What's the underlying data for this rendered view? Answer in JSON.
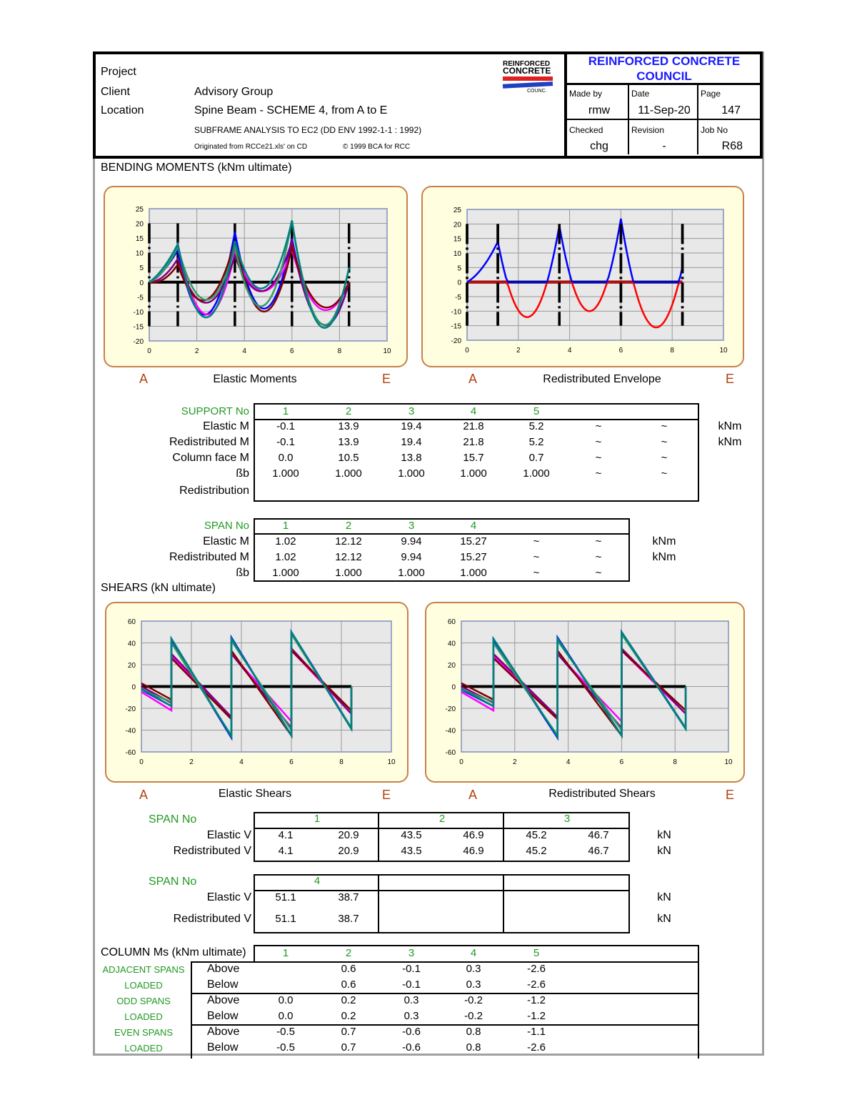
{
  "header": {
    "project_label": "Project",
    "client_label": "Client",
    "client": "Advisory Group",
    "location_label": "Location",
    "location": "Spine Beam - SCHEME 4, from A to E",
    "analysis": "SUBFRAME ANALYSIS TO EC2 (DD ENV 1992-1-1 : 1992)",
    "originated": "Originated from RCCe21.xls' on CD",
    "copyright": "© 1999 BCA for RCC",
    "logo_text": "REINFORCED CONCRETE COUNCIL",
    "council_line1": "REINFORCED CONCRETE",
    "council_line2": "COUNCIL",
    "made_by_label": "Made by",
    "made_by": "rmw",
    "date_label": "Date",
    "date": "11-Sep-20",
    "page_label": "Page",
    "page": "147",
    "checked_label": "Checked",
    "checked": "chg",
    "revision_label": "Revision",
    "revision": "-",
    "job_label": "Job No",
    "job": "R68"
  },
  "bending": {
    "title": "BENDING MOMENTS (kNm ultimate)",
    "left_caption": "Elastic Moments",
    "right_caption": "Redistributed Envelope",
    "a": "A",
    "e": "E"
  },
  "supports": {
    "header": "SUPPORT No",
    "cols": [
      "1",
      "2",
      "3",
      "4",
      "5"
    ],
    "rows": [
      {
        "label": "Elastic M",
        "values": [
          "-0.1",
          "13.9",
          "19.4",
          "21.8",
          "5.2",
          "~",
          "~"
        ],
        "unit": "kNm"
      },
      {
        "label": "Redistributed M",
        "values": [
          "-0.1",
          "13.9",
          "19.4",
          "21.8",
          "5.2",
          "~",
          "~"
        ],
        "unit": "kNm"
      },
      {
        "label": "Column face M",
        "values": [
          "0.0",
          "10.5",
          "13.8",
          "15.7",
          "0.7",
          "~",
          "~"
        ],
        "unit": ""
      },
      {
        "label": "ßb",
        "values": [
          "1.000",
          "1.000",
          "1.000",
          "1.000",
          "1.000",
          "~",
          "~"
        ],
        "unit": ""
      },
      {
        "label": "Redistribution",
        "values": [],
        "unit": ""
      }
    ]
  },
  "spans": {
    "header": "SPAN No",
    "cols": [
      "1",
      "2",
      "3",
      "4"
    ],
    "rows": [
      {
        "label": "Elastic M",
        "values": [
          "1.02",
          "12.12",
          "9.94",
          "15.27",
          "~",
          "~"
        ],
        "unit": "kNm"
      },
      {
        "label": "Redistributed M",
        "values": [
          "1.02",
          "12.12",
          "9.94",
          "15.27",
          "~",
          "~"
        ],
        "unit": "kNm"
      },
      {
        "label": "ßb",
        "values": [
          "1.000",
          "1.000",
          "1.000",
          "1.000",
          "~",
          "~"
        ],
        "unit": ""
      }
    ]
  },
  "shears": {
    "title": "SHEARS (kN ultimate)",
    "left_caption": "Elastic Shears",
    "right_caption": "Redistributed Shears",
    "a": "A",
    "e": "E",
    "table1": {
      "header": "SPAN No",
      "cols": [
        "1",
        "2",
        "3"
      ],
      "rows": [
        {
          "label": "Elastic V",
          "values": [
            "4.1",
            "20.9",
            "43.5",
            "46.9",
            "45.2",
            "46.7"
          ],
          "unit": "kN"
        },
        {
          "label": "Redistributed V",
          "values": [
            "4.1",
            "20.9",
            "43.5",
            "46.9",
            "45.2",
            "46.7"
          ],
          "unit": "kN"
        }
      ]
    },
    "table2": {
      "header": "SPAN No",
      "cols": [
        "4"
      ],
      "rows": [
        {
          "label": "Elastic V",
          "values": [
            "51.1",
            "38.7"
          ],
          "unit": "kN"
        },
        {
          "label": "Redistributed V",
          "values": [
            "51.1",
            "38.7"
          ],
          "unit": "kN"
        }
      ]
    }
  },
  "columns": {
    "title": "COLUMN Ms (kNm ultimate)",
    "cols": [
      "1",
      "2",
      "3",
      "4",
      "5"
    ],
    "groups": [
      {
        "label1": "ADJACENT SPANS",
        "label2": "LOADED",
        "rows": [
          {
            "pos": "Above",
            "values": [
              "",
              "0.6",
              "-0.1",
              "0.3",
              "-2.6"
            ]
          },
          {
            "pos": "Below",
            "values": [
              "",
              "0.6",
              "-0.1",
              "0.3",
              "-2.6"
            ]
          }
        ]
      },
      {
        "label1": "ODD SPANS",
        "label2": "LOADED",
        "rows": [
          {
            "pos": "Above",
            "values": [
              "0.0",
              "0.2",
              "0.3",
              "-0.2",
              "-1.2"
            ]
          },
          {
            "pos": "Below",
            "values": [
              "0.0",
              "0.2",
              "0.3",
              "-0.2",
              "-1.2"
            ]
          }
        ]
      },
      {
        "label1": "EVEN SPANS",
        "label2": "LOADED",
        "rows": [
          {
            "pos": "Above",
            "values": [
              "-0.5",
              "0.7",
              "-0.6",
              "0.8",
              "-1.1"
            ]
          },
          {
            "pos": "Below",
            "values": [
              "-0.5",
              "0.7",
              "-0.6",
              "0.8",
              "-2.6"
            ]
          }
        ]
      }
    ]
  },
  "chart_data": [
    {
      "type": "line",
      "xlim": [
        0,
        10
      ],
      "ylim": [
        -20,
        25
      ],
      "xticks": [
        0,
        2,
        4,
        6,
        8,
        10
      ],
      "yticks": [
        -20,
        -15,
        -10,
        -5,
        0,
        5,
        10,
        15,
        20,
        25
      ],
      "grid": true,
      "supports_x": [
        0,
        1.2,
        3.6,
        6,
        8.4
      ],
      "series": [
        {
          "color": "#0000ff",
          "support_values": [
            0,
            11,
            17,
            15,
            0
          ],
          "midspan_values": [
            4,
            -11,
            -9,
            -14
          ]
        },
        {
          "color": "#ff00ff",
          "support_values": [
            0,
            13,
            10,
            11,
            0
          ],
          "midspan_values": [
            4,
            -11,
            -3,
            -9
          ]
        },
        {
          "color": "#800080",
          "support_values": [
            0,
            8,
            9,
            14,
            0
          ],
          "midspan_values": [
            2,
            -7,
            -3,
            -14
          ]
        },
        {
          "color": "#800000",
          "support_values": [
            0,
            6,
            14,
            12,
            0
          ],
          "midspan_values": [
            1,
            -6,
            -10,
            -8
          ]
        },
        {
          "color": "#339966",
          "support_values": [
            0,
            12,
            12,
            21,
            5
          ],
          "midspan_values": [
            4,
            -6,
            -8,
            -14
          ]
        },
        {
          "color": "#008080",
          "support_values": [
            0,
            13,
            14,
            21,
            5
          ],
          "midspan_values": [
            5,
            -12,
            -2,
            -15
          ]
        }
      ]
    },
    {
      "type": "line",
      "xlim": [
        0,
        10
      ],
      "ylim": [
        -20,
        25
      ],
      "xticks": [
        0,
        2,
        4,
        6,
        8,
        10
      ],
      "yticks": [
        -20,
        -15,
        -10,
        -5,
        0,
        5,
        10,
        15,
        20,
        25
      ],
      "grid": true,
      "supports_x": [
        0,
        1.2,
        3.6,
        6,
        8.4
      ],
      "envelope": true,
      "series": [
        {
          "color": "#0000ff",
          "negative_color": "#ff0000",
          "support_values": [
            0,
            13.9,
            19.4,
            21.8,
            5.2
          ],
          "midspan_values": [
            5,
            -12,
            -10,
            -15
          ]
        }
      ]
    },
    {
      "type": "line",
      "xlim": [
        0,
        10
      ],
      "ylim": [
        -60,
        60
      ],
      "xticks": [
        0,
        2,
        4,
        6,
        8,
        10
      ],
      "yticks": [
        -60,
        -40,
        -20,
        0,
        20,
        40,
        60
      ],
      "grid": true,
      "supports_x": [
        0,
        1.2,
        3.6,
        6,
        8.4
      ],
      "series": [
        {
          "color": "#0000ff",
          "span_end_values": [
            [
              -3,
              -18
            ],
            [
              43,
              -47
            ],
            [
              45,
              -45
            ],
            [
              50,
              -38
            ]
          ]
        },
        {
          "color": "#ff00ff",
          "span_end_values": [
            [
              -5,
              -22
            ],
            [
              28,
              -28
            ],
            [
              30,
              -32
            ],
            [
              33,
              -25
            ]
          ]
        },
        {
          "color": "#800080",
          "span_end_values": [
            [
              0,
              -15
            ],
            [
              30,
              -28
            ],
            [
              30,
              -38
            ],
            [
              35,
              -25
            ]
          ]
        },
        {
          "color": "#800000",
          "span_end_values": [
            [
              3,
              -12
            ],
            [
              26,
              -30
            ],
            [
              33,
              -45
            ],
            [
              33,
              -22
            ]
          ]
        },
        {
          "color": "#339966",
          "span_end_values": [
            [
              -3,
              -14
            ],
            [
              40,
              -45
            ],
            [
              42,
              -40
            ],
            [
              48,
              -38
            ]
          ]
        },
        {
          "color": "#008080",
          "span_end_values": [
            [
              -2,
              -18
            ],
            [
              44,
              -46
            ],
            [
              44,
              -45
            ],
            [
              50,
              -39
            ]
          ]
        }
      ]
    },
    {
      "type": "line",
      "xlim": [
        0,
        10
      ],
      "ylim": [
        -60,
        60
      ],
      "xticks": [
        0,
        2,
        4,
        6,
        8,
        10
      ],
      "yticks": [
        -60,
        -40,
        -20,
        0,
        20,
        40,
        60
      ],
      "grid": true,
      "supports_x": [
        0,
        1.2,
        3.6,
        6,
        8.4
      ],
      "series": [
        {
          "color": "#0000ff",
          "span_end_values": [
            [
              -3,
              -18
            ],
            [
              43,
              -47
            ],
            [
              45,
              -45
            ],
            [
              50,
              -38
            ]
          ]
        },
        {
          "color": "#ff00ff",
          "span_end_values": [
            [
              -5,
              -22
            ],
            [
              28,
              -28
            ],
            [
              30,
              -32
            ],
            [
              33,
              -25
            ]
          ]
        },
        {
          "color": "#800080",
          "span_end_values": [
            [
              0,
              -15
            ],
            [
              30,
              -28
            ],
            [
              30,
              -38
            ],
            [
              35,
              -25
            ]
          ]
        },
        {
          "color": "#800000",
          "span_end_values": [
            [
              3,
              -12
            ],
            [
              26,
              -30
            ],
            [
              33,
              -45
            ],
            [
              33,
              -22
            ]
          ]
        },
        {
          "color": "#339966",
          "span_end_values": [
            [
              -3,
              -14
            ],
            [
              40,
              -45
            ],
            [
              42,
              -40
            ],
            [
              48,
              -38
            ]
          ]
        },
        {
          "color": "#008080",
          "span_end_values": [
            [
              -2,
              -18
            ],
            [
              44,
              -46
            ],
            [
              44,
              -45
            ],
            [
              50,
              -39
            ]
          ]
        }
      ]
    }
  ]
}
